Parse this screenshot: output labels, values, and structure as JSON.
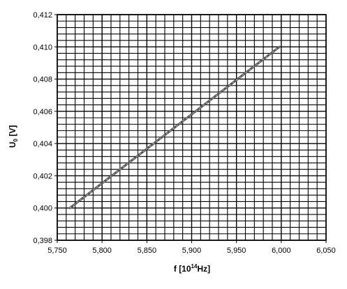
{
  "chart_data": {
    "type": "line",
    "title": "",
    "xlabel": {
      "base": "f [10",
      "sup": "14",
      "rest": "Hz]"
    },
    "ylabel": {
      "base": "U",
      "sub": "0",
      "rest": " [V]"
    },
    "xlim": [
      5.75,
      6.05
    ],
    "ylim": [
      0.398,
      0.412
    ],
    "grid": true,
    "x_tick_labels": [
      "5,750",
      "5,800",
      "5,850",
      "5,900",
      "5,950",
      "6,000",
      "6,050"
    ],
    "y_tick_labels": [
      "0,398",
      "0,400",
      "0,402",
      "0,404",
      "0,406",
      "0,408",
      "0,410",
      "0,412"
    ],
    "series": [
      {
        "x": [
          5.764,
          5.998
        ],
        "y": [
          0.4,
          0.41
        ]
      }
    ],
    "colors": {
      "line": "#555555",
      "grid": "#000000"
    }
  }
}
